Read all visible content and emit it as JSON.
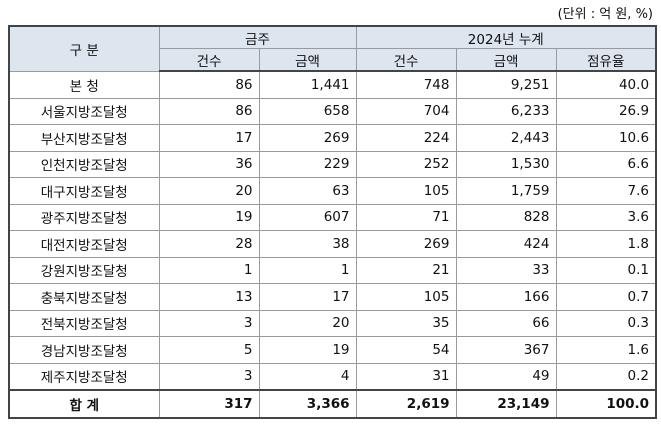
{
  "unit": "(단위 : 억 원, %)",
  "table": {
    "header": {
      "category": "구 분",
      "groups": [
        "금주",
        "2024년 누계"
      ],
      "columns": [
        "건수",
        "금액",
        "건수",
        "금액",
        "점유율"
      ]
    },
    "rows": [
      [
        "본  청",
        "86",
        "1,441",
        "748",
        "9,251",
        "40.0"
      ],
      [
        "서울지방조달청",
        "86",
        "658",
        "704",
        "6,233",
        "26.9"
      ],
      [
        "부산지방조달청",
        "17",
        "269",
        "224",
        "2,443",
        "10.6"
      ],
      [
        "인천지방조달청",
        "36",
        "229",
        "252",
        "1,530",
        "6.6"
      ],
      [
        "대구지방조달청",
        "20",
        "63",
        "105",
        "1,759",
        "7.6"
      ],
      [
        "광주지방조달청",
        "19",
        "607",
        "71",
        "828",
        "3.6"
      ],
      [
        "대전지방조달청",
        "28",
        "38",
        "269",
        "424",
        "1.8"
      ],
      [
        "강원지방조달청",
        "1",
        "1",
        "21",
        "33",
        "0.1"
      ],
      [
        "충북지방조달청",
        "13",
        "17",
        "105",
        "166",
        "0.7"
      ],
      [
        "전북지방조달청",
        "3",
        "20",
        "35",
        "66",
        "0.3"
      ],
      [
        "경남지방조달청",
        "5",
        "19",
        "54",
        "367",
        "1.6"
      ],
      [
        "제주지방조달청",
        "3",
        "4",
        "31",
        "49",
        "0.2"
      ],
      [
        "합  계",
        "317",
        "3,366",
        "2,619",
        "23,149",
        "100.0"
      ]
    ]
  }
}
